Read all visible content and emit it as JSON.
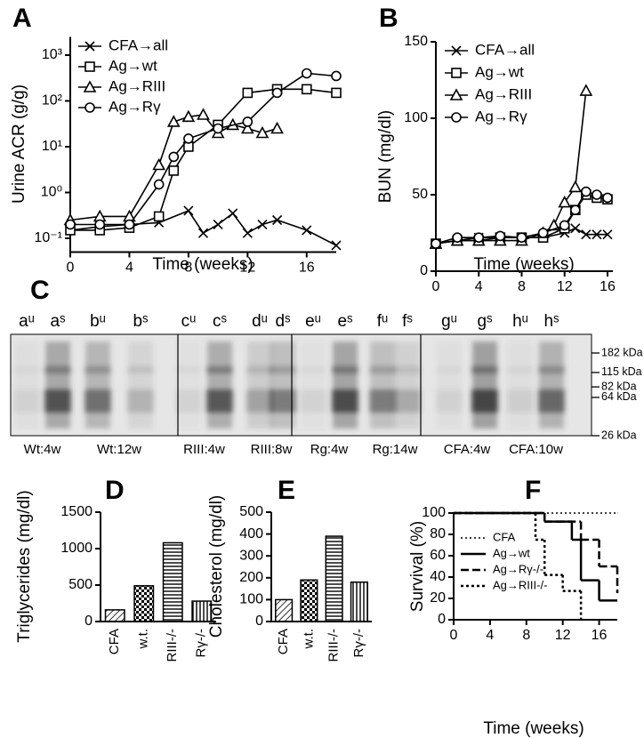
{
  "chart_data": [
    {
      "panel": "A",
      "type": "line",
      "log_y": true,
      "xlabel": "Time (weeks)",
      "ylabel": "Urine ACR (g/g)",
      "xlim": [
        0,
        18
      ],
      "xticks": [
        0,
        4,
        8,
        12,
        16
      ],
      "ylim": [
        0.05,
        2500
      ],
      "yticks": [
        {
          "value": 0.1,
          "label": "10⁻¹"
        },
        {
          "value": 1,
          "label": "10⁰"
        },
        {
          "value": 10,
          "label": "10¹"
        },
        {
          "value": 100,
          "label": "10²"
        },
        {
          "value": 1000,
          "label": "10³"
        }
      ],
      "legend": "top-left",
      "series": [
        {
          "name": "CFA→all",
          "marker": "x",
          "color": "#000000",
          "x": [
            0,
            2,
            4,
            6,
            8,
            9,
            10,
            11,
            12,
            13,
            14,
            16,
            18
          ],
          "values": [
            0.15,
            0.18,
            0.2,
            0.22,
            0.4,
            0.13,
            0.2,
            0.35,
            0.13,
            0.2,
            0.25,
            0.15,
            0.07
          ]
        },
        {
          "name": "Ag→wt",
          "marker": "square",
          "color": "#000000",
          "x": [
            0,
            2,
            4,
            6,
            7,
            8,
            10,
            12,
            14,
            16,
            18
          ],
          "values": [
            0.15,
            0.15,
            0.17,
            0.3,
            3,
            10,
            30,
            150,
            180,
            180,
            150
          ]
        },
        {
          "name": "Ag→RIII",
          "marker": "triangle",
          "color": "#000000",
          "x": [
            0,
            2,
            4,
            6,
            7,
            8,
            9,
            10,
            11,
            12,
            13,
            14
          ],
          "values": [
            0.25,
            0.3,
            0.3,
            4,
            35,
            45,
            50,
            20,
            30,
            25,
            20,
            25
          ]
        },
        {
          "name": "Ag→Rγ",
          "marker": "circle",
          "color": "#000000",
          "x": [
            0,
            2,
            4,
            6,
            7,
            8,
            10,
            12,
            14,
            16,
            18
          ],
          "values": [
            0.2,
            0.2,
            0.2,
            1.5,
            6,
            15,
            25,
            35,
            150,
            400,
            350
          ]
        }
      ]
    },
    {
      "panel": "B",
      "type": "line",
      "log_y": false,
      "xlabel": "Time (weeks)",
      "ylabel": "BUN (mg/dl)",
      "xlim": [
        0,
        16.5
      ],
      "xticks": [
        0,
        4,
        8,
        12,
        16
      ],
      "ylim": [
        0,
        150
      ],
      "yticks": [
        0,
        50,
        100,
        150
      ],
      "legend": "top-left",
      "series": [
        {
          "name": "CFA→all",
          "marker": "x",
          "color": "#000000",
          "x": [
            0,
            2,
            4,
            6,
            8,
            10,
            12,
            13,
            14,
            15,
            16
          ],
          "values": [
            18,
            20,
            22,
            22,
            22,
            22,
            25,
            28,
            24,
            24,
            24
          ]
        },
        {
          "name": "Ag→wt",
          "marker": "square",
          "color": "#000000",
          "x": [
            0,
            2,
            4,
            6,
            8,
            10,
            12,
            13,
            14,
            15,
            16
          ],
          "values": [
            18,
            20,
            20,
            22,
            22,
            22,
            28,
            40,
            50,
            48,
            47
          ]
        },
        {
          "name": "Ag→RIII",
          "marker": "triangle",
          "color": "#000000",
          "x": [
            0,
            2,
            4,
            6,
            8,
            10,
            11,
            12,
            13,
            14
          ],
          "values": [
            18,
            20,
            20,
            20,
            20,
            25,
            30,
            45,
            55,
            118
          ]
        },
        {
          "name": "Ag→Rγ",
          "marker": "circle",
          "color": "#000000",
          "x": [
            0,
            2,
            4,
            6,
            8,
            10,
            12,
            13,
            14,
            15,
            16
          ],
          "values": [
            18,
            22,
            22,
            23,
            22,
            25,
            30,
            40,
            52,
            50,
            48
          ]
        }
      ]
    },
    {
      "panel": "C",
      "type": "gel",
      "lanes": [
        "aᵘ",
        "aˢ",
        "bᵘ",
        "bˢ",
        "cᵘ",
        "cˢ",
        "dᵘ",
        "dˢ",
        "eᵘ",
        "eˢ",
        "fᵘ",
        "fˢ",
        "gᵘ",
        "gˢ",
        "hᵘ",
        "hˢ"
      ],
      "groups": [
        "Wt:4w",
        "Wt:12w",
        "RIII:4w",
        "RIII:8w",
        "Rg:4w",
        "Rg:14w",
        "CFA:4w",
        "CFA:10w"
      ],
      "markers": [
        {
          "value": 182,
          "label": "182 kDa"
        },
        {
          "value": 115,
          "label": "115 kDa"
        },
        {
          "value": 82,
          "label": "82 kDa"
        },
        {
          "value": 64,
          "label": "64 kDa"
        },
        {
          "value": 26,
          "label": "26 kDa"
        }
      ]
    },
    {
      "panel": "D",
      "type": "bar",
      "ylabel": "Triglycerides (mg/dl)",
      "categories": [
        "CFA",
        "w.t.",
        "RIII-/-",
        "Rγ-/-"
      ],
      "values": [
        160,
        490,
        1080,
        280
      ],
      "patterns": [
        "diagonal",
        "checker",
        "horizontal",
        "vertical"
      ],
      "color": "#000000",
      "ylim": [
        0,
        1500
      ],
      "yticks": [
        0,
        500,
        1000,
        1500
      ]
    },
    {
      "panel": "E",
      "type": "bar",
      "ylabel": "Cholesterol (mg/dl)",
      "categories": [
        "CFA",
        "w.t.",
        "RIII-/-",
        "Rγ-/-"
      ],
      "values": [
        100,
        190,
        390,
        180
      ],
      "patterns": [
        "diagonal",
        "checker",
        "horizontal",
        "vertical"
      ],
      "color": "#000000",
      "ylim": [
        0,
        500
      ],
      "yticks": [
        0,
        100,
        200,
        300,
        400,
        500
      ]
    },
    {
      "panel": "F",
      "type": "line",
      "step": true,
      "xlabel": "Time (weeks)",
      "ylabel": "Survival (%)",
      "xlim": [
        0,
        18
      ],
      "xticks": [
        0,
        4,
        8,
        12,
        16
      ],
      "ylim": [
        0,
        100
      ],
      "yticks": [
        0,
        20,
        40,
        60,
        80,
        100
      ],
      "legend": "bottom-left",
      "series": [
        {
          "name": "CFA",
          "dash": "2,3",
          "width": 1.5,
          "color": "#000000",
          "x": [
            0,
            18
          ],
          "values": [
            100,
            100
          ]
        },
        {
          "name": "Ag→wt",
          "dash": "none",
          "width": 2.5,
          "color": "#000000",
          "x": [
            0,
            10,
            13,
            14,
            16,
            18
          ],
          "values": [
            100,
            92,
            75,
            37,
            18,
            18
          ]
        },
        {
          "name": "Ag→Rγ-/-",
          "dash": "9,4",
          "width": 2.5,
          "color": "#000000",
          "x": [
            0,
            10,
            14,
            16,
            18
          ],
          "values": [
            100,
            92,
            75,
            50,
            25
          ]
        },
        {
          "name": "Ag→RIII-/-",
          "dash": "3,3",
          "width": 2.5,
          "color": "#000000",
          "x": [
            0,
            9,
            10,
            12,
            14
          ],
          "values": [
            100,
            75,
            42,
            27,
            0
          ]
        }
      ]
    }
  ]
}
